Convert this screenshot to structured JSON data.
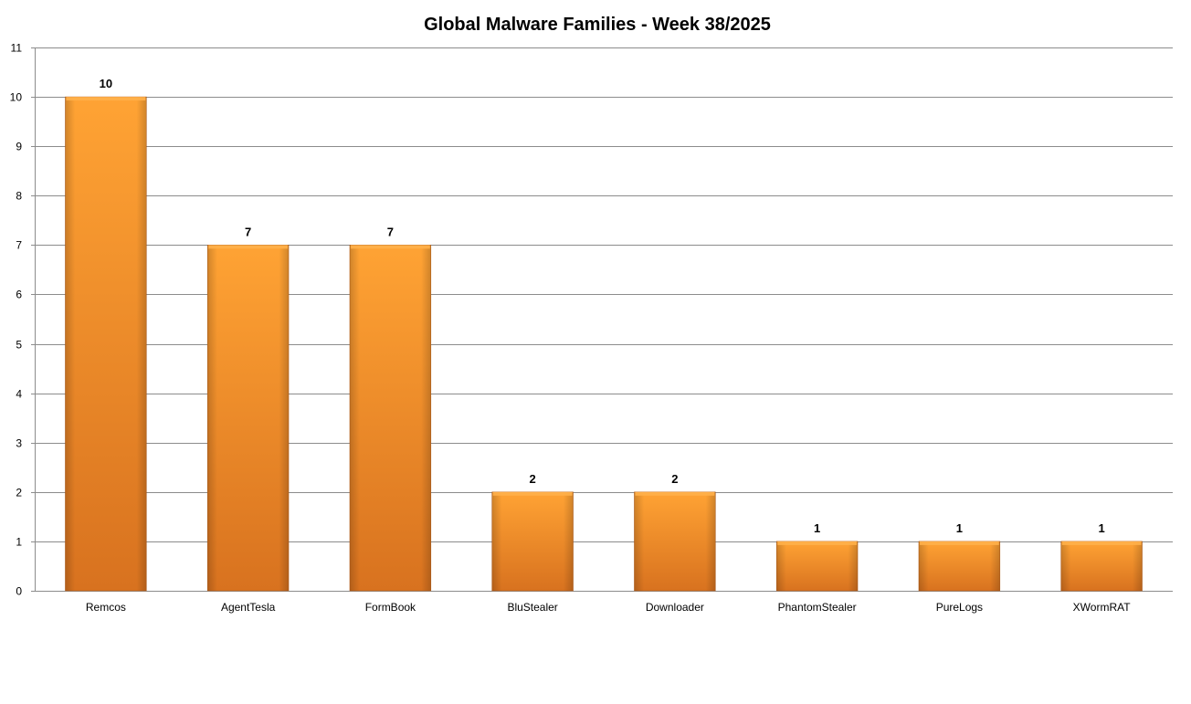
{
  "chart_data": {
    "type": "bar",
    "title": "Global Malware Families - Week 38/2025",
    "xlabel": "",
    "ylabel": "",
    "categories": [
      "Remcos",
      "AgentTesla",
      "FormBook",
      "BluStealer",
      "Downloader",
      "PhantomStealer",
      "PureLogs",
      "XWormRAT"
    ],
    "values": [
      10,
      7,
      7,
      2,
      2,
      1,
      1,
      1
    ],
    "data_labels": [
      "10",
      "7",
      "7",
      "2",
      "2",
      "1",
      "1",
      "1"
    ],
    "ylim": [
      0,
      11
    ],
    "yticks": [
      0,
      1,
      2,
      3,
      4,
      5,
      6,
      7,
      8,
      9,
      10,
      11
    ],
    "grid": true,
    "legend": "none",
    "colors": {
      "bar_light": "#ffa334",
      "bar_dark": "#d8721f",
      "bar_top": "#ffb04a",
      "bar_edge": "#b9621f",
      "grid": "#8c8c8c",
      "axis": "#8c8c8c",
      "text": "#000000"
    }
  }
}
